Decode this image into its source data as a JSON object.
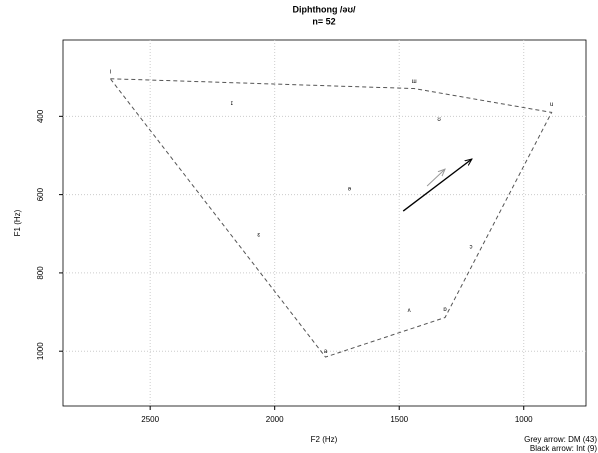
{
  "chart_data": {
    "type": "scatter",
    "title": "Diphthong /əʊ/",
    "subtitle": "n= 52",
    "x_label": "F2 (Hz)",
    "y_label": "F1 (Hz)",
    "xlim": [
      2850,
      750
    ],
    "ylim": [
      205,
      1140
    ],
    "xticks": [
      2500,
      2000,
      1500,
      1000
    ],
    "yticks": [
      400,
      600,
      800,
      1000
    ],
    "grid": true,
    "points": {
      "labels": [
        "i",
        "ɪ",
        "ɛ",
        "a",
        "ə",
        "ɯ",
        "ʊ",
        "u",
        "ɔ",
        "ʌ",
        "ɒ"
      ],
      "colors": [
        "#c8a000",
        "#ff6680",
        "#c0602a",
        "#e03030",
        "#e040e0",
        "#8060ff",
        "#3080ff",
        "#20b8e0",
        "#20c060",
        "#109060",
        "#10a0a0"
      ],
      "x": [
        2660,
        2172,
        2064,
        1796,
        1700,
        1440,
        1340,
        888,
        1212,
        1460,
        1316
      ],
      "y": [
        286,
        367,
        703,
        1000,
        586,
        311,
        408,
        370,
        733,
        896,
        893
      ]
    },
    "polygon": {
      "color": "#555555",
      "x": [
        2660,
        1440,
        888,
        1316,
        1796
      ],
      "y": [
        304,
        329,
        390,
        914,
        1015
      ]
    },
    "arrows": [
      {
        "color": "#999999",
        "x": [
          1388,
          1316
        ],
        "y": [
          578,
          535
        ]
      },
      {
        "color": "#000000",
        "x": [
          1484,
          1208
        ],
        "y": [
          642,
          509
        ]
      }
    ],
    "notes": [
      "Grey arrow: DM (43)",
      "Black arrow: Int (9)"
    ]
  }
}
